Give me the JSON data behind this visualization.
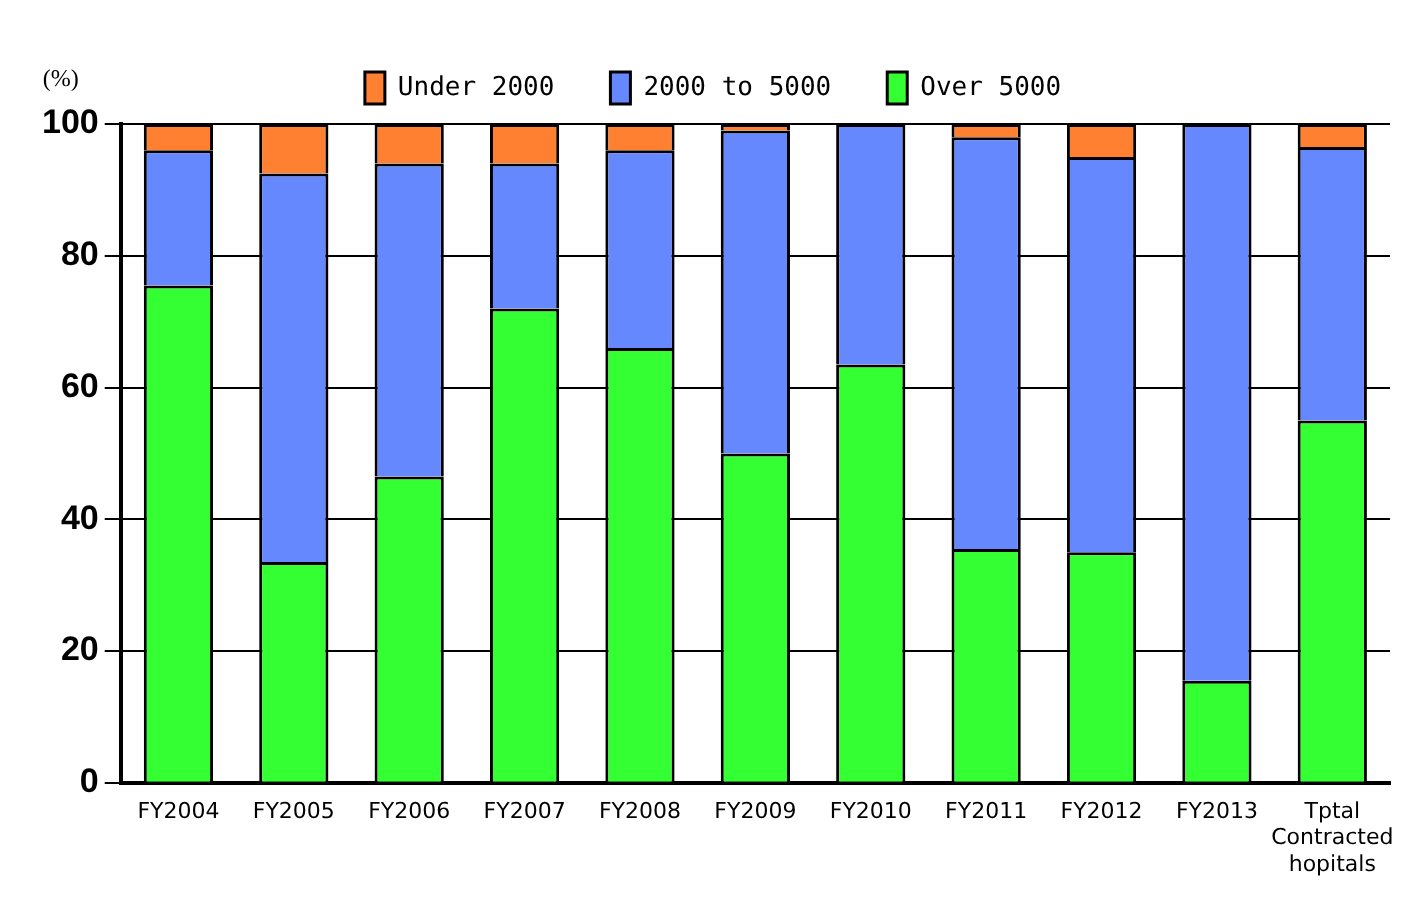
{
  "chart_data": {
    "type": "bar",
    "stacked": true,
    "ylabel": "(%)",
    "categories": [
      "FY2004",
      "FY2005",
      "FY2006",
      "FY2007",
      "FY2008",
      "FY2009",
      "FY2010",
      "FY2011",
      "FY2012",
      "FY2013",
      "Tptal Contracted hopitals"
    ],
    "series": [
      {
        "name": "Over 5000",
        "color": "#33ff33",
        "values": [
          75.5,
          33.5,
          46.5,
          72,
          66,
          50,
          63.5,
          35.5,
          35,
          15.5,
          55
        ]
      },
      {
        "name": "2000 to 5000",
        "color": "#6688ff",
        "values": [
          20.5,
          59,
          47.5,
          22,
          30,
          49,
          36.5,
          62.5,
          60,
          84.5,
          41.5
        ]
      },
      {
        "name": "Under 2000",
        "color": "#ff8030",
        "values": [
          4,
          7.5,
          6,
          6,
          4,
          1,
          0,
          2,
          5,
          0,
          3.5
        ]
      }
    ],
    "ylim": [
      0,
      100
    ],
    "yticks": [
      0,
      20,
      40,
      60,
      80,
      100
    ],
    "grid": "y",
    "legend": "top"
  }
}
